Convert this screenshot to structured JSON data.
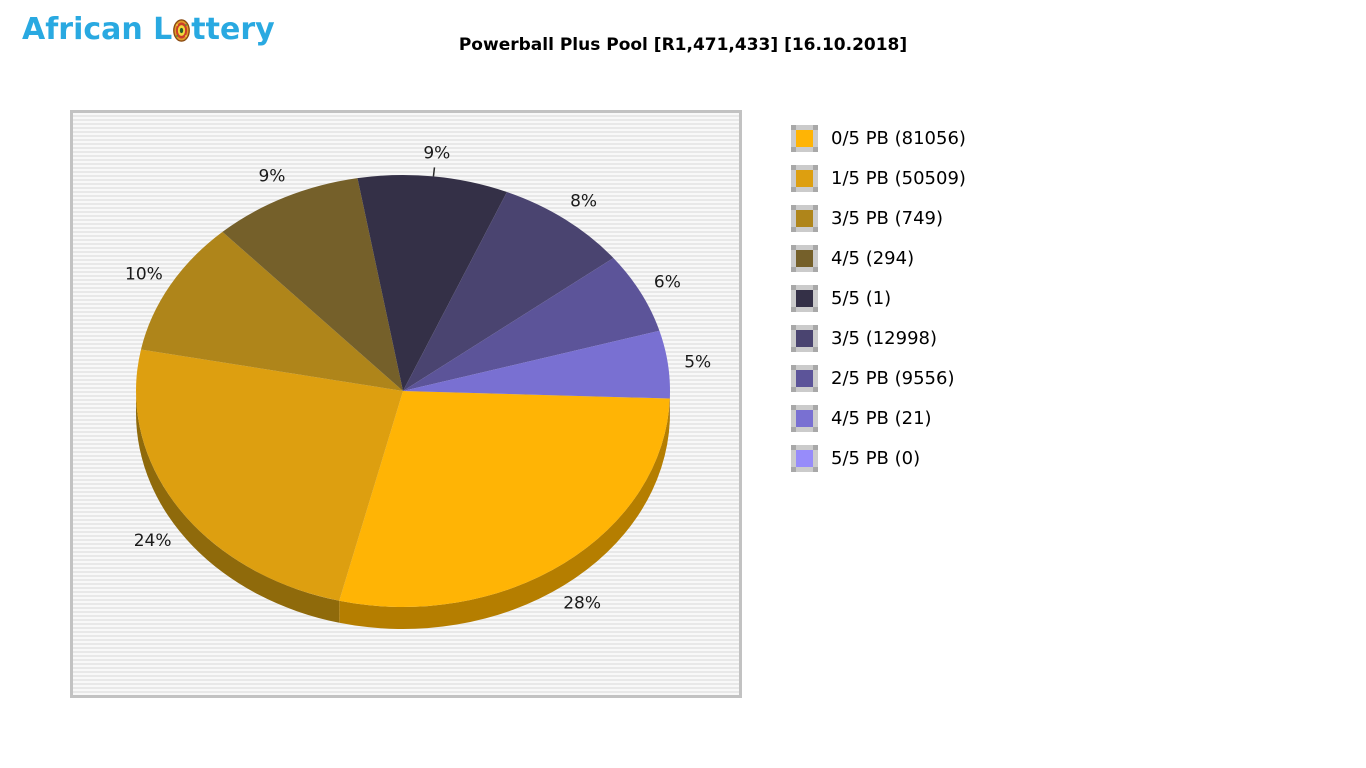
{
  "logo": {
    "text": "African Lottery",
    "display_prefix": "African L",
    "display_suffix": "ttery",
    "color": "#29A9E1"
  },
  "title": "Powerball Plus Pool [R1,471,433] [16.10.2018]",
  "chart_data": {
    "type": "pie",
    "title": "Powerball Plus Pool [R1,471,433] [16.10.2018]",
    "style": "3d-pie",
    "legend_position": "right",
    "background": "horizontal-striped-gray",
    "values_are": "percent of pool",
    "slices": [
      {
        "label": "0/5 PB",
        "count": 81056,
        "percent": 28,
        "display": "0/5 PB (81056)",
        "color": "#FFB405",
        "side_color": "#B57E00"
      },
      {
        "label": "1/5 PB",
        "count": 50509,
        "percent": 24,
        "display": "1/5 PB (50509)",
        "color": "#DD9F10",
        "side_color": "#8F6A0B"
      },
      {
        "label": "3/5 PB",
        "count": 749,
        "percent": 10,
        "display": "3/5 PB (749)",
        "color": "#AF851A",
        "side_color": "#715607"
      },
      {
        "label": "4/5",
        "count": 294,
        "percent": 9,
        "display": "4/5 (294)",
        "color": "#75602A",
        "side_color": "#4A3C14"
      },
      {
        "label": "5/5",
        "count": 1,
        "percent": 9,
        "display": "5/5 (1)",
        "color": "#343047",
        "side_color": "#201D30"
      },
      {
        "label": "3/5",
        "count": 12998,
        "percent": 8,
        "display": "3/5 (12998)",
        "color": "#4A4470",
        "side_color": "#2F2B4C"
      },
      {
        "label": "2/5 PB",
        "count": 9556,
        "percent": 6,
        "display": "2/5 PB (9556)",
        "color": "#5C5499",
        "side_color": "#3C3768"
      },
      {
        "label": "4/5 PB",
        "count": 21,
        "percent": 5,
        "display": "4/5 PB (21)",
        "color": "#7970D2",
        "side_color": "#4E4795"
      },
      {
        "label": "5/5 PB",
        "count": 0,
        "percent": 0,
        "display": "5/5 PB (0)",
        "color": "#978CFA",
        "side_color": "#6A61C0"
      }
    ],
    "percent_labels_shown": [
      "28%",
      "24%",
      "10%",
      "9%",
      "9%",
      "8%",
      "6%",
      "5%"
    ]
  }
}
